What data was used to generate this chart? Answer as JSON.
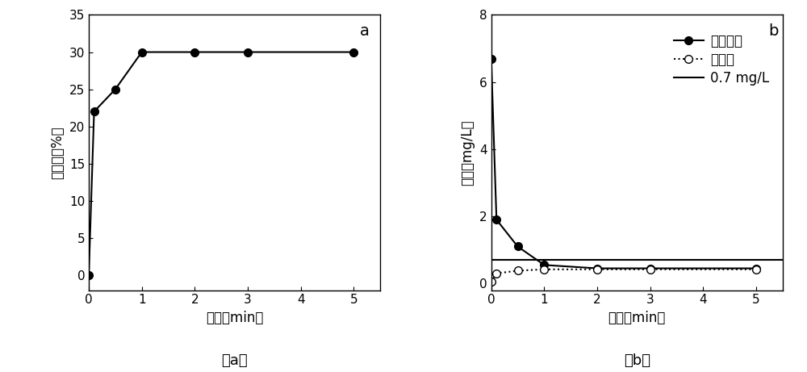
{
  "plot_a": {
    "x": [
      0,
      0.1,
      0.5,
      1,
      2,
      3,
      5
    ],
    "y": [
      0,
      22,
      25,
      30,
      30,
      30,
      30
    ],
    "xlabel": "时间（min）",
    "ylabel": "去除率（%）",
    "xlim": [
      0,
      5.5
    ],
    "ylim": [
      -2,
      35
    ],
    "xticks": [
      0,
      1,
      2,
      3,
      4,
      5
    ],
    "yticks": [
      0,
      5,
      10,
      15,
      20,
      25,
      30,
      35
    ],
    "label": "a",
    "line_color": "#000000",
    "marker": "o",
    "markerfacecolor": "#000000"
  },
  "plot_b": {
    "x_chlorite": [
      0,
      0.1,
      0.5,
      1,
      2,
      3,
      5
    ],
    "y_chlorite": [
      6.7,
      1.9,
      1.1,
      0.55,
      0.45,
      0.45,
      0.45
    ],
    "x_chlorate": [
      0,
      0.1,
      0.5,
      1,
      2,
      3,
      5
    ],
    "y_chlorate": [
      0.05,
      0.3,
      0.38,
      0.42,
      0.42,
      0.42,
      0.42
    ],
    "threshold": 0.7,
    "xlabel": "时间（min）",
    "ylabel": "浓度（mg/L）",
    "xlim": [
      0,
      5.5
    ],
    "ylim": [
      -0.2,
      8
    ],
    "xticks": [
      0,
      1,
      2,
      3,
      4,
      5
    ],
    "yticks": [
      0,
      2,
      4,
      6,
      8
    ],
    "label": "b",
    "legend_chlorite": "亚氯酸盐",
    "legend_chlorate": "氯酸盐",
    "legend_threshold": "0.7 mg/L"
  },
  "caption_a": "（a）",
  "caption_b": "（b）",
  "background_color": "#ffffff",
  "font_color": "#000000"
}
